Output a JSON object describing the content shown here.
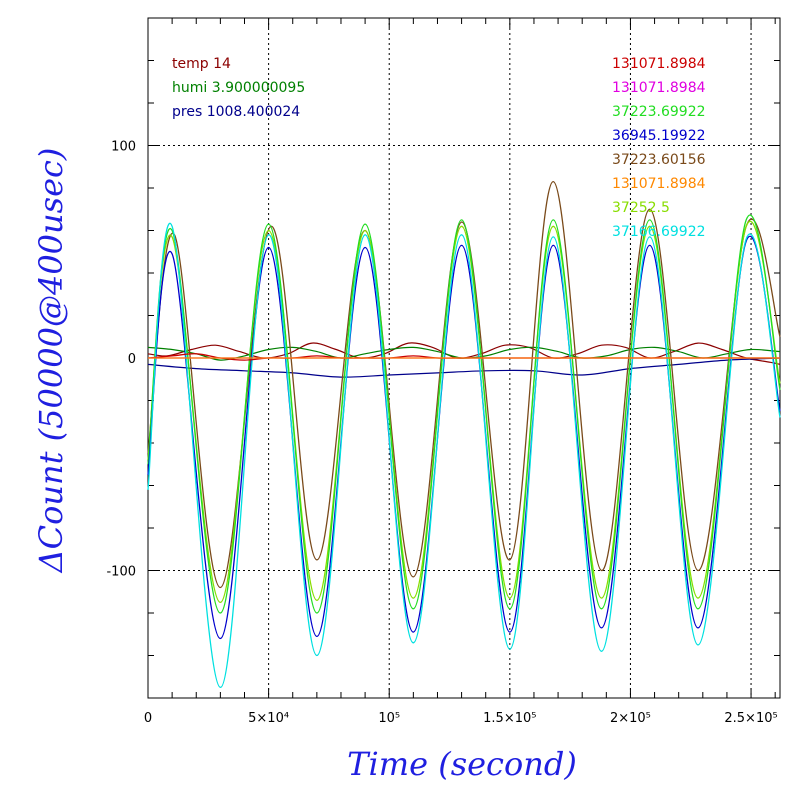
{
  "chart_data": {
    "type": "line",
    "xlabel": "Time (second)",
    "ylabel": "ΔCount (50000@400usec)",
    "xlim": [
      0,
      262000
    ],
    "ylim": [
      -160,
      160
    ],
    "grid": true,
    "x_ticks": [
      {
        "value": 0,
        "label": "0"
      },
      {
        "value": 50000,
        "label": "5×10⁴"
      },
      {
        "value": 100000,
        "label": "10⁵"
      },
      {
        "value": 150000,
        "label": "1.5×10⁵"
      },
      {
        "value": 200000,
        "label": "2×10⁵"
      },
      {
        "value": 250000,
        "label": "2.5×10⁵"
      }
    ],
    "y_ticks": [
      {
        "value": 100,
        "label": "100"
      },
      {
        "value": 0,
        "label": "0"
      },
      {
        "value": -100,
        "label": "-100"
      }
    ],
    "info_lines": [
      {
        "text": "temp 14",
        "color": "#8b0000"
      },
      {
        "text": "humi 3.900000095",
        "color": "#008000"
      },
      {
        "text": "pres 1008.400024",
        "color": "#00008b"
      }
    ],
    "series": [
      {
        "name": "131071.8984",
        "color": "#cc0000",
        "x": [
          0,
          10000,
          20000,
          30000,
          40000,
          50000,
          60000,
          70000,
          80000,
          90000,
          100000,
          110000,
          120000,
          130000,
          140000,
          150000,
          160000,
          170000,
          180000,
          190000,
          200000,
          210000,
          220000,
          230000,
          240000,
          250000,
          262000
        ],
        "values": [
          0,
          1,
          2,
          0,
          -1,
          0,
          0,
          1,
          0,
          0,
          0,
          1,
          0,
          0,
          0,
          0,
          0,
          0,
          0,
          0,
          0,
          0,
          0,
          0,
          0,
          0,
          0
        ]
      },
      {
        "name": "131071.8984",
        "color": "#e000e0",
        "x": [
          0,
          262000
        ],
        "values": [
          0,
          0
        ]
      },
      {
        "name": "37223.69922",
        "color": "#22dd22",
        "x": [
          0,
          10000,
          30000,
          50000,
          70000,
          90000,
          110000,
          130000,
          150000,
          168000,
          188000,
          208000,
          228000,
          248000,
          262000
        ],
        "values": [
          -50,
          60,
          -120,
          63,
          -120,
          63,
          -118,
          65,
          -118,
          65,
          -118,
          65,
          -118,
          65,
          -15
        ]
      },
      {
        "name": "36945.19922",
        "color": "#0000cc",
        "x": [
          0,
          10000,
          30000,
          50000,
          70000,
          90000,
          110000,
          130000,
          150000,
          168000,
          188000,
          208000,
          228000,
          248000,
          262000
        ],
        "values": [
          -55,
          49,
          -132,
          52,
          -131,
          52,
          -129,
          53,
          -129,
          53,
          -127,
          53,
          -127,
          55,
          -25
        ]
      },
      {
        "name": "37223.60156",
        "color": "#7a4a1a",
        "x": [
          0,
          11000,
          30000,
          51000,
          70000,
          90000,
          110000,
          130000,
          150000,
          168000,
          188000,
          208000,
          228000,
          248000,
          262000
        ],
        "values": [
          -45,
          58,
          -108,
          62,
          -95,
          60,
          -103,
          64,
          -95,
          83,
          -100,
          70,
          -100,
          62,
          10
        ]
      },
      {
        "name": "131071.8984",
        "color": "#ff8800",
        "x": [
          0,
          262000
        ],
        "values": [
          0,
          0
        ]
      },
      {
        "name": "37252.5",
        "color": "#88dd00",
        "x": [
          0,
          10000,
          30000,
          50000,
          70000,
          90000,
          110000,
          130000,
          150000,
          168000,
          188000,
          208000,
          228000,
          248000,
          262000
        ],
        "values": [
          -48,
          57,
          -115,
          60,
          -114,
          60,
          -113,
          62,
          -113,
          62,
          -113,
          62,
          -113,
          62,
          -12
        ]
      },
      {
        "name": "37166.69922",
        "color": "#00e0e0",
        "x": [
          0,
          10000,
          30000,
          50000,
          70000,
          90000,
          110000,
          130000,
          150000,
          168000,
          188000,
          208000,
          228000,
          248000,
          262000
        ],
        "values": [
          -62,
          62,
          -155,
          58,
          -140,
          58,
          -134,
          58,
          -137,
          57,
          -138,
          57,
          -135,
          56,
          -28
        ]
      }
    ],
    "baseline_series": [
      {
        "color": "#8b0000",
        "x": [
          0,
          8000,
          18000,
          28000,
          38000,
          48000,
          58000,
          68000,
          78000,
          88000,
          98000,
          108000,
          118000,
          128000,
          138000,
          148000,
          158000,
          168000,
          178000,
          188000,
          198000,
          208000,
          218000,
          228000,
          238000,
          248000,
          258000,
          262000
        ],
        "values": [
          2,
          1,
          4,
          6,
          3,
          0,
          2,
          7,
          4,
          0,
          2,
          7,
          5,
          0,
          2,
          6,
          5,
          0,
          2,
          6,
          5,
          0,
          3,
          7,
          4,
          0,
          -2,
          -3
        ]
      },
      {
        "color": "#008000",
        "x": [
          0,
          10000,
          20000,
          30000,
          40000,
          50000,
          60000,
          70000,
          80000,
          90000,
          100000,
          110000,
          120000,
          130000,
          140000,
          150000,
          160000,
          170000,
          180000,
          190000,
          200000,
          210000,
          220000,
          230000,
          240000,
          250000,
          262000
        ],
        "values": [
          5,
          4,
          2,
          -1,
          1,
          4,
          5,
          3,
          0,
          2,
          4,
          5,
          3,
          0,
          1,
          4,
          5,
          3,
          0,
          1,
          4,
          5,
          3,
          0,
          2,
          4,
          3
        ]
      },
      {
        "color": "#00008b",
        "x": [
          0,
          20000,
          40000,
          60000,
          80000,
          100000,
          120000,
          140000,
          160000,
          180000,
          200000,
          220000,
          240000,
          262000
        ],
        "values": [
          -3,
          -5,
          -6,
          -7,
          -9,
          -8,
          -7,
          -6,
          -6,
          -8,
          -5,
          -3,
          -1,
          0
        ]
      }
    ]
  }
}
